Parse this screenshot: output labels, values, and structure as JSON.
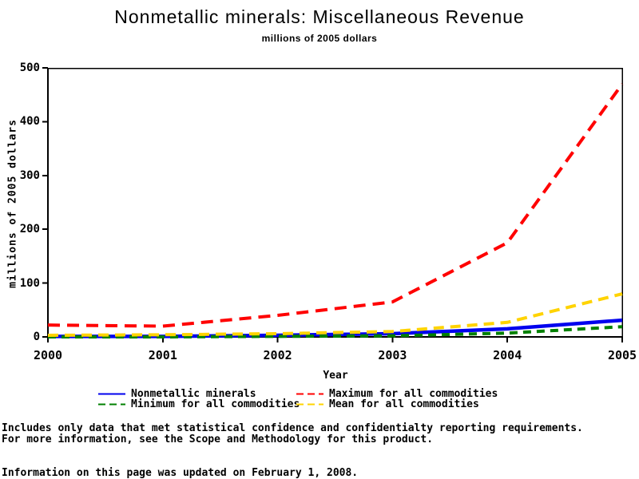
{
  "title": "Nonmetallic minerals: Miscellaneous Revenue",
  "subtitle": "millions of 2005 dollars",
  "axes": {
    "xlabel": "Year",
    "ylabel": "millions of 2005 dollars"
  },
  "legend": {
    "items": [
      {
        "label": "Nonmetallic minerals",
        "color": "#0000ee",
        "dash": ""
      },
      {
        "label": "Maximum for all commodities",
        "color": "#ff0000",
        "dash": "9 5"
      },
      {
        "label": "Minimum for all commodities",
        "color": "#008000",
        "dash": "9 5"
      },
      {
        "label": "Mean for all commodities",
        "color": "#ffd300",
        "dash": "9 5"
      }
    ]
  },
  "footer": {
    "line1": "Includes only data that met statistical confidence and confidentialty reporting requirements.",
    "line2": "For more information, see the Scope and Methodology for this product.",
    "line3": "Information on this page was updated on February 1, 2008."
  },
  "chart_data": {
    "type": "line",
    "title": "Nonmetallic minerals: Miscellaneous Revenue",
    "subtitle": "millions of 2005 dollars",
    "xlabel": "Year",
    "ylabel": "millions of 2005 dollars",
    "x": [
      2000,
      2001,
      2002,
      2003,
      2004,
      2005
    ],
    "xlim": [
      2000,
      2005
    ],
    "ylim": [
      0,
      500
    ],
    "yticks": [
      0,
      100,
      200,
      300,
      400,
      500
    ],
    "grid": false,
    "legend_position": "bottom",
    "series": [
      {
        "name": "Nonmetallic minerals",
        "color": "#0000ee",
        "style": "solid",
        "width": 4.5,
        "dash": null,
        "values": [
          1,
          1,
          3,
          6,
          15,
          31
        ]
      },
      {
        "name": "Minimum for all commodities",
        "color": "#008000",
        "style": "dashed",
        "width": 4,
        "dash": [
          10,
          7
        ],
        "values": [
          0,
          0,
          1,
          2,
          7,
          19
        ]
      },
      {
        "name": "Mean for all commodities",
        "color": "#ffd300",
        "style": "dashed",
        "width": 4,
        "dash": [
          13,
          8
        ],
        "values": [
          3,
          4,
          6,
          10,
          27,
          80
        ]
      },
      {
        "name": "Maximum for all commodities",
        "color": "#ff0000",
        "style": "dashed",
        "width": 4,
        "dash": [
          15,
          9
        ],
        "values": [
          22,
          20,
          40,
          65,
          175,
          470
        ]
      }
    ]
  }
}
